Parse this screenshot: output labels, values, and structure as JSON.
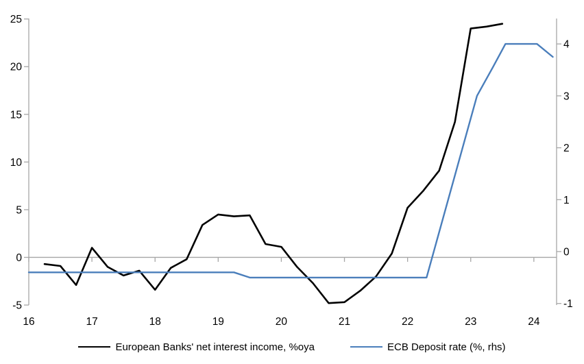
{
  "chart_data": {
    "type": "line",
    "title": "",
    "grid": "off",
    "legend_position": "bottom",
    "background_color": "#ffffff",
    "axis_color": "#a6a6a6",
    "x_axis": {
      "xlim": [
        16,
        24.36
      ],
      "ticks": [
        16,
        17,
        18,
        19,
        20,
        21,
        22,
        23,
        24
      ],
      "tick_labels": [
        "16",
        "17",
        "18",
        "19",
        "20",
        "21",
        "22",
        "23",
        "24"
      ]
    },
    "left_axis": {
      "ylim": [
        -5,
        25.05
      ],
      "ticks": [
        -5,
        0,
        5,
        10,
        15,
        20,
        25
      ],
      "tick_labels": [
        "-5",
        "0",
        "5",
        "10",
        "15",
        "20",
        "25"
      ]
    },
    "right_axis": {
      "ylim": [
        -1.03,
        4.49
      ],
      "ticks": [
        -1,
        0,
        1,
        2,
        3,
        4
      ],
      "tick_labels": [
        "-1",
        "0",
        "1",
        "2",
        "3",
        "4"
      ]
    },
    "series": [
      {
        "name": "European Banks' net interest income, %oya",
        "axis": "left",
        "color": "#000000",
        "line_width": 2.6,
        "x": [
          16.25,
          16.5,
          16.75,
          17.0,
          17.25,
          17.5,
          17.75,
          18.0,
          18.25,
          18.5,
          18.75,
          19.0,
          19.25,
          19.5,
          19.75,
          20.0,
          20.25,
          20.5,
          20.75,
          21.0,
          21.25,
          21.5,
          21.75,
          22.0,
          22.25,
          22.5,
          22.75,
          23.0,
          23.25,
          23.5
        ],
        "values": [
          -0.7,
          -0.9,
          -2.9,
          1.0,
          -1.0,
          -1.9,
          -1.4,
          -3.4,
          -1.1,
          -0.2,
          3.4,
          4.5,
          4.3,
          4.4,
          1.4,
          1.1,
          -1.0,
          -2.7,
          -4.8,
          -4.7,
          -3.5,
          -2.0,
          0.4,
          5.2,
          7.0,
          9.1,
          14.2,
          24.0,
          24.2,
          24.5
        ]
      },
      {
        "name": "ECB Deposit rate (%, rhs)",
        "axis": "right",
        "color": "#4a7ebb",
        "line_width": 2.4,
        "x": [
          16.0,
          19.25,
          19.5,
          22.3,
          23.1,
          23.35,
          23.55,
          24.05,
          24.3
        ],
        "values": [
          -0.4,
          -0.4,
          -0.5,
          -0.5,
          3.0,
          3.55,
          4.0,
          4.0,
          3.75
        ]
      }
    ]
  }
}
